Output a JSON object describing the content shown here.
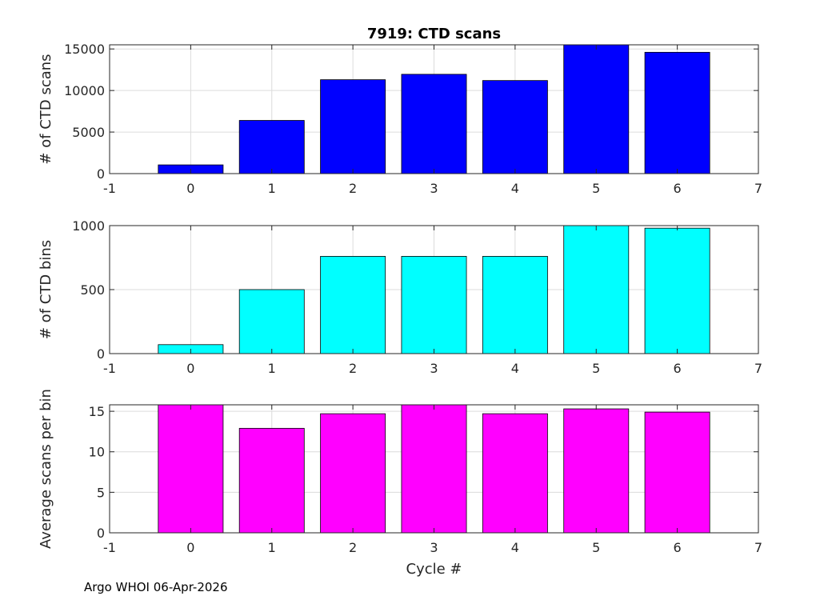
{
  "chart_data": [
    {
      "type": "bar",
      "title": "7919: CTD scans",
      "ylabel": "# of CTD scans",
      "xlabel": "",
      "x": [
        0,
        1,
        2,
        3,
        4,
        5,
        6
      ],
      "values": [
        1050,
        6400,
        11300,
        11950,
        11200,
        15500,
        14600
      ],
      "xlim": [
        -1,
        7
      ],
      "ylim": [
        0,
        15500
      ],
      "xticks": [
        -1,
        0,
        1,
        2,
        3,
        4,
        5,
        6,
        7
      ],
      "yticks": [
        0,
        5000,
        10000,
        15000
      ],
      "color": "#0000ff",
      "grid": true
    },
    {
      "type": "bar",
      "title": "",
      "ylabel": "# of CTD bins",
      "xlabel": "",
      "x": [
        0,
        1,
        2,
        3,
        4,
        5,
        6
      ],
      "values": [
        70,
        500,
        760,
        760,
        760,
        1000,
        980
      ],
      "xlim": [
        -1,
        7
      ],
      "ylim": [
        0,
        1000
      ],
      "xticks": [
        -1,
        0,
        1,
        2,
        3,
        4,
        5,
        6,
        7
      ],
      "yticks": [
        0,
        500,
        1000
      ],
      "color": "#00ffff",
      "grid": true
    },
    {
      "type": "bar",
      "title": "",
      "ylabel": "Average scans per bin",
      "xlabel": "Cycle #",
      "x": [
        0,
        1,
        2,
        3,
        4,
        5,
        6
      ],
      "values": [
        15.8,
        12.9,
        14.7,
        15.8,
        14.7,
        15.3,
        14.9
      ],
      "xlim": [
        -1,
        7
      ],
      "ylim": [
        0,
        15.8
      ],
      "xticks": [
        -1,
        0,
        1,
        2,
        3,
        4,
        5,
        6,
        7
      ],
      "yticks": [
        0,
        5,
        10,
        15
      ],
      "color": "#ff00ff",
      "grid": true
    }
  ],
  "footer": "Argo WHOI 06-Apr-2026"
}
